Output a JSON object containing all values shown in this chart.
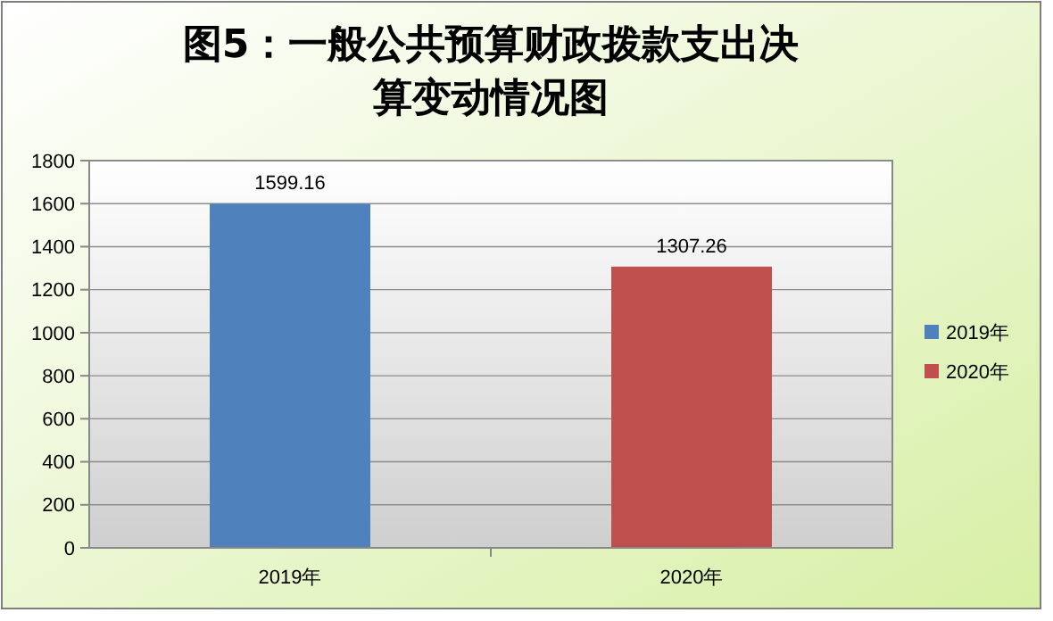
{
  "chart_data": {
    "type": "bar",
    "title": "图5：一般公共预算财政拨款支出决算变动情况图",
    "categories": [
      "2019年",
      "2020年"
    ],
    "series": [
      {
        "name": "2019年",
        "color": "#4f81bd",
        "values": [
          1599.16,
          null
        ]
      },
      {
        "name": "2020年",
        "color": "#c0504d",
        "values": [
          null,
          1307.26
        ]
      }
    ],
    "ylim": [
      0,
      1800
    ],
    "yticks": [
      0,
      200,
      400,
      600,
      800,
      1000,
      1200,
      1400,
      1600,
      1800
    ],
    "grid": "y",
    "legend": "right",
    "data_labels": true
  }
}
